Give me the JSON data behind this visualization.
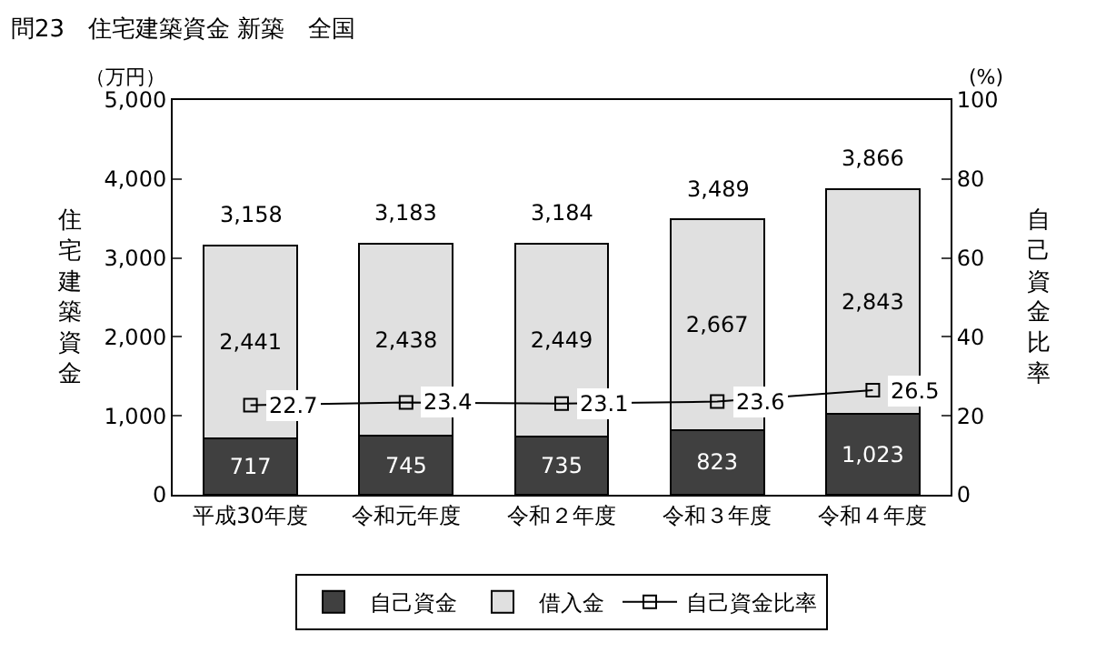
{
  "chart_data": {
    "type": "bar",
    "title": "問23　住宅建築資金 新築　全国",
    "ylabel": "住宅建築資金",
    "y2label": "自己資金比率",
    "annotations": [
      "（万円）",
      "(%)"
    ],
    "categories": [
      "平成30年度",
      "令和元年度",
      "令和２年度",
      "令和３年度",
      "令和４年度"
    ],
    "stacked": true,
    "series": [
      {
        "name": "自己資金",
        "color": "#404040",
        "values": [
          717,
          745,
          735,
          823,
          1023
        ],
        "value_labels": [
          "717",
          "745",
          "735",
          "823",
          "1,023"
        ]
      },
      {
        "name": "借入金",
        "color": "#e0e0e0",
        "values": [
          2441,
          2438,
          2449,
          2667,
          2843
        ],
        "value_labels": [
          "2,441",
          "2,438",
          "2,449",
          "2,667",
          "2,843"
        ]
      },
      {
        "name": "自己資金比率",
        "type": "line",
        "axis": "y2",
        "color": "#000000",
        "marker": "square",
        "values": [
          22.7,
          23.4,
          23.1,
          23.6,
          26.5
        ],
        "value_labels": [
          "22.7",
          "23.4",
          "23.1",
          "23.6",
          "26.5"
        ]
      }
    ],
    "totals": [
      "3,158",
      "3,183",
      "3,184",
      "3,489",
      "3,866"
    ],
    "ylim": [
      0,
      5000
    ],
    "yticks": [
      {
        "value": 0,
        "label": "0"
      },
      {
        "value": 1000,
        "label": "1,000"
      },
      {
        "value": 2000,
        "label": "2,000"
      },
      {
        "value": 3000,
        "label": "3,000"
      },
      {
        "value": 4000,
        "label": "4,000"
      },
      {
        "value": 5000,
        "label": "5,000"
      }
    ],
    "y2lim": [
      0,
      100
    ],
    "y2ticks": [
      0,
      20,
      40,
      60,
      80,
      100
    ],
    "grid": false,
    "legend": "bottom"
  }
}
